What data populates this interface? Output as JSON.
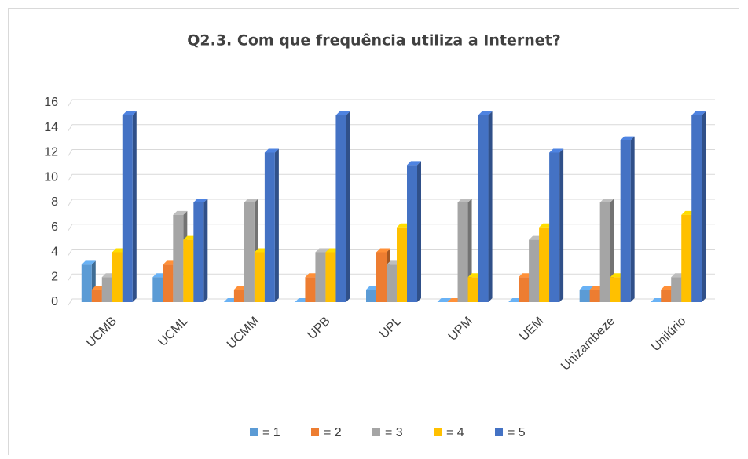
{
  "chart_data": {
    "type": "bar",
    "title": "Q2.3. Com que frequência utiliza a Internet?",
    "categories": [
      "UCMB",
      "UCML",
      "UCMM",
      "UPB",
      "UPL",
      "UPM",
      "UEM",
      "Unizambeze",
      "Unilúrio"
    ],
    "series": [
      {
        "name": "= 1",
        "color": "#5b9bd5",
        "values": [
          3,
          2,
          0,
          0,
          1,
          0,
          0,
          1,
          0
        ]
      },
      {
        "name": "= 2",
        "color": "#ed7d31",
        "values": [
          1,
          3,
          1,
          2,
          4,
          0,
          2,
          1,
          1
        ]
      },
      {
        "name": "= 3",
        "color": "#a5a5a5",
        "values": [
          2,
          7,
          8,
          4,
          3,
          8,
          5,
          8,
          2
        ]
      },
      {
        "name": "= 4",
        "color": "#ffc000",
        "values": [
          4,
          5,
          4,
          4,
          6,
          2,
          6,
          2,
          7
        ]
      },
      {
        "name": "= 5",
        "color": "#4472c4",
        "values": [
          15,
          8,
          12,
          15,
          11,
          15,
          12,
          13,
          15
        ]
      }
    ],
    "ylim": [
      0,
      16
    ],
    "yticks": [
      0,
      2,
      4,
      6,
      8,
      10,
      12,
      14,
      16
    ],
    "grid": true,
    "legend": "bottom"
  }
}
